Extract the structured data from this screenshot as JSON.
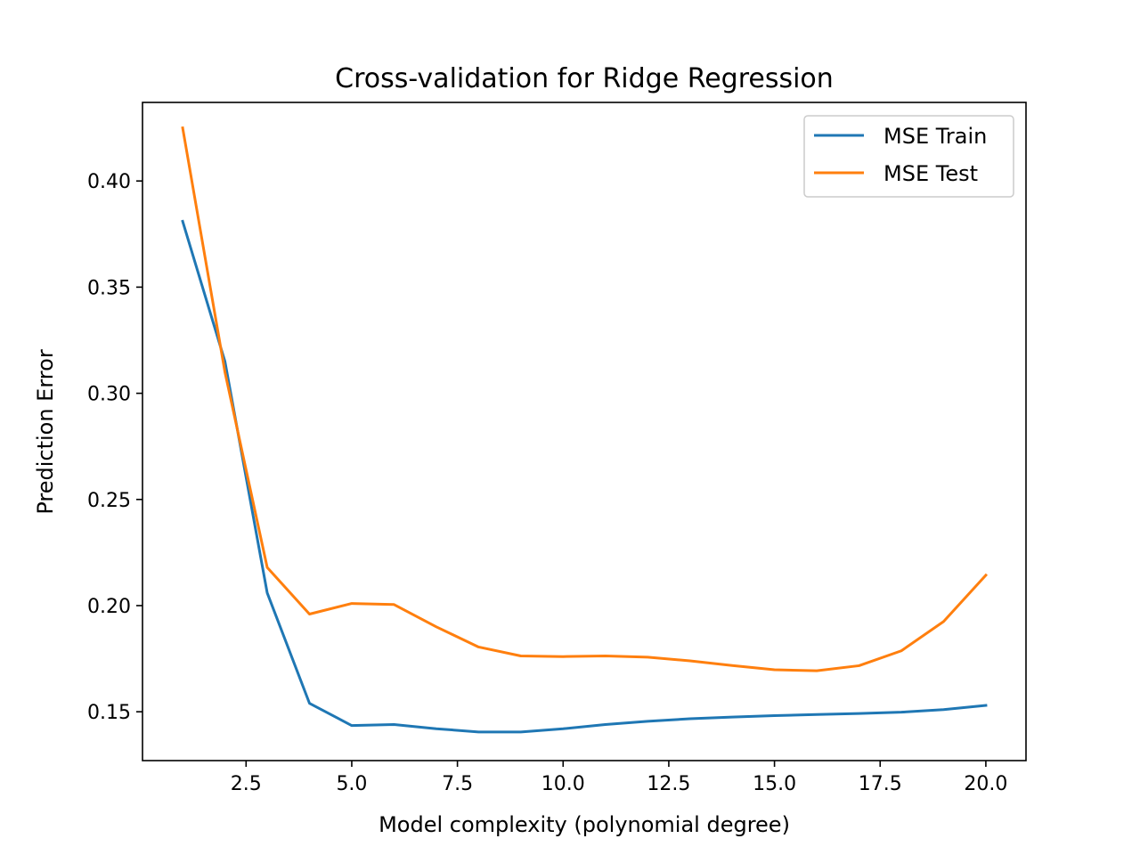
{
  "chart_data": {
    "type": "line",
    "title": "Cross-validation for Ridge Regression",
    "xlabel": "Model complexity (polynomial degree)",
    "ylabel": "Prediction Error",
    "xlim": [
      0.05,
      20.95
    ],
    "ylim": [
      0.127,
      0.437
    ],
    "xticks": [
      2.5,
      5.0,
      7.5,
      10.0,
      12.5,
      15.0,
      17.5,
      20.0
    ],
    "xtick_labels": [
      "2.5",
      "5.0",
      "7.5",
      "10.0",
      "12.5",
      "15.0",
      "17.5",
      "20.0"
    ],
    "yticks": [
      0.15,
      0.2,
      0.25,
      0.3,
      0.35,
      0.4
    ],
    "ytick_labels": [
      "0.15",
      "0.20",
      "0.25",
      "0.30",
      "0.35",
      "0.40"
    ],
    "grid": false,
    "legend_position": "top-right",
    "x": [
      1,
      2,
      3,
      4,
      5,
      6,
      7,
      8,
      9,
      10,
      11,
      12,
      13,
      14,
      15,
      16,
      17,
      18,
      19,
      20
    ],
    "series": [
      {
        "name": "MSE Train",
        "color": "#1f77b4",
        "values": [
          0.381,
          0.315,
          0.206,
          0.154,
          0.1435,
          0.144,
          0.142,
          0.1405,
          0.1405,
          0.142,
          0.144,
          0.1455,
          0.1467,
          0.1475,
          0.1482,
          0.1487,
          0.1492,
          0.1498,
          0.151,
          0.153
        ]
      },
      {
        "name": "MSE Test",
        "color": "#ff7f0e",
        "values": [
          0.425,
          0.31,
          0.218,
          0.196,
          0.201,
          0.2005,
          0.19,
          0.1805,
          0.1763,
          0.176,
          0.1763,
          0.1757,
          0.174,
          0.1718,
          0.1698,
          0.1693,
          0.1717,
          0.1787,
          0.1925,
          0.2143
        ]
      }
    ]
  }
}
